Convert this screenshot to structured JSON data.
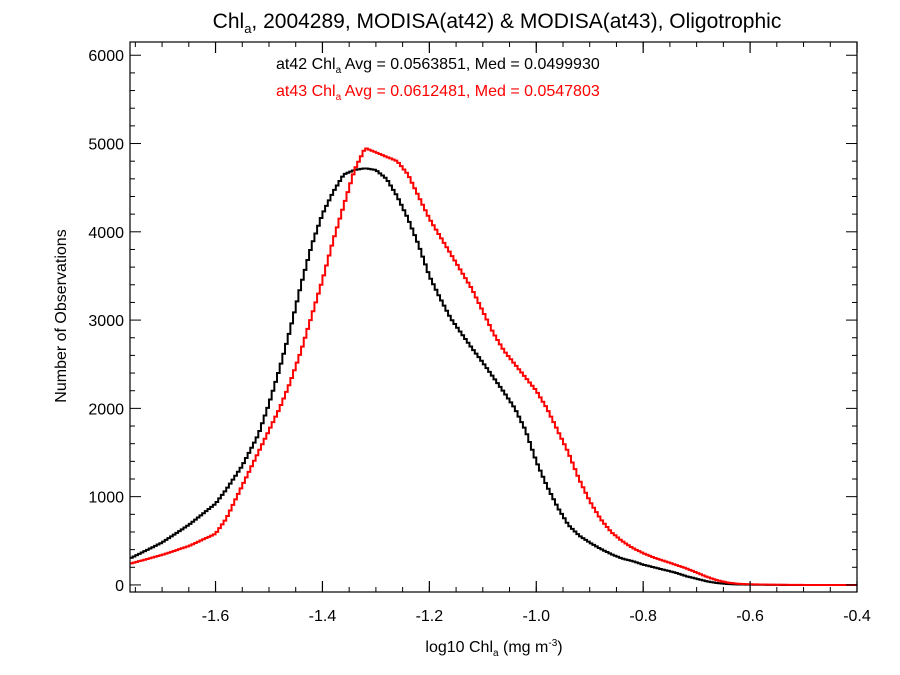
{
  "chart_data": {
    "type": "line",
    "title_parts": {
      "pre": "Chl",
      "sub": "a",
      "post": ", 2004289, MODISA(at42) & MODISA(at43), Oligotrophic"
    },
    "xlabel_parts": {
      "pre": "log10 Chl",
      "sub": "a",
      "mid": " (mg m",
      "sup": "-3",
      "post": ")"
    },
    "ylabel": "Number of Observations",
    "xlim": [
      -1.76,
      -0.4
    ],
    "ylim": [
      -80,
      6150
    ],
    "x_ticks": [
      -1.6,
      -1.4,
      -1.2,
      -1.0,
      -0.8,
      -0.6,
      -0.4
    ],
    "x_tick_labels": [
      "-1.6",
      "-1.4",
      "-1.2",
      "-1.0",
      "-0.8",
      "-0.6",
      "-0.4"
    ],
    "y_ticks": [
      0,
      1000,
      2000,
      3000,
      4000,
      5000,
      6000
    ],
    "y_tick_labels": [
      "0",
      "1000",
      "2000",
      "3000",
      "4000",
      "5000",
      "6000"
    ],
    "annotations": [
      {
        "pre": "at42 Chl",
        "sub": "a",
        "post": " Avg = 0.0563851, Med = 0.0499930",
        "color": "#000000"
      },
      {
        "pre": "at43 Chl",
        "sub": "a",
        "post": " Avg = 0.0612481, Med = 0.0547803",
        "color": "#ff0000"
      }
    ],
    "grid": false,
    "style": "step",
    "series": [
      {
        "color": "#000000",
        "x": [
          -1.76,
          -1.7,
          -1.65,
          -1.6,
          -1.58,
          -1.55,
          -1.52,
          -1.5,
          -1.48,
          -1.46,
          -1.44,
          -1.42,
          -1.4,
          -1.38,
          -1.36,
          -1.34,
          -1.32,
          -1.3,
          -1.28,
          -1.26,
          -1.24,
          -1.22,
          -1.2,
          -1.18,
          -1.16,
          -1.14,
          -1.12,
          -1.1,
          -1.08,
          -1.06,
          -1.04,
          -1.02,
          -1.0,
          -0.98,
          -0.96,
          -0.94,
          -0.92,
          -0.9,
          -0.88,
          -0.86,
          -0.84,
          -0.82,
          -0.8,
          -0.78,
          -0.76,
          -0.74,
          -0.72,
          -0.7,
          -0.68,
          -0.66,
          -0.64,
          -0.62,
          -0.6,
          -0.58,
          -0.56,
          -0.54,
          -0.52,
          -0.5,
          -0.48,
          -0.46,
          -0.44,
          -0.42,
          -0.4
        ],
        "y": [
          300,
          480,
          680,
          920,
          1080,
          1350,
          1700,
          2050,
          2450,
          2900,
          3400,
          3850,
          4200,
          4450,
          4650,
          4700,
          4720,
          4700,
          4600,
          4400,
          4150,
          3850,
          3500,
          3250,
          3020,
          2850,
          2680,
          2520,
          2350,
          2180,
          2000,
          1750,
          1400,
          1120,
          880,
          680,
          560,
          480,
          410,
          350,
          300,
          270,
          230,
          200,
          170,
          140,
          100,
          70,
          40,
          20,
          10,
          5,
          3,
          2,
          1,
          0,
          0,
          0,
          0,
          0,
          0,
          0,
          0
        ]
      },
      {
        "color": "#ff0000",
        "x": [
          -1.76,
          -1.7,
          -1.65,
          -1.6,
          -1.58,
          -1.56,
          -1.54,
          -1.52,
          -1.5,
          -1.48,
          -1.46,
          -1.44,
          -1.42,
          -1.4,
          -1.38,
          -1.36,
          -1.34,
          -1.32,
          -1.3,
          -1.28,
          -1.26,
          -1.24,
          -1.22,
          -1.2,
          -1.18,
          -1.16,
          -1.14,
          -1.12,
          -1.1,
          -1.08,
          -1.06,
          -1.04,
          -1.02,
          -1.0,
          -0.98,
          -0.96,
          -0.94,
          -0.92,
          -0.9,
          -0.88,
          -0.86,
          -0.84,
          -0.82,
          -0.8,
          -0.78,
          -0.76,
          -0.74,
          -0.72,
          -0.7,
          -0.68,
          -0.66,
          -0.64,
          -0.62,
          -0.6,
          -0.58,
          -0.56,
          -0.54,
          -0.52,
          -0.5,
          -0.48,
          -0.46,
          -0.44,
          -0.42,
          -0.4
        ],
        "y": [
          240,
          340,
          440,
          580,
          750,
          1000,
          1250,
          1500,
          1750,
          2000,
          2300,
          2650,
          3050,
          3450,
          3900,
          4300,
          4700,
          4950,
          4900,
          4850,
          4800,
          4650,
          4400,
          4150,
          3950,
          3750,
          3550,
          3350,
          3100,
          2850,
          2650,
          2500,
          2350,
          2200,
          2000,
          1750,
          1500,
          1200,
          950,
          750,
          600,
          500,
          420,
          360,
          310,
          270,
          230,
          190,
          140,
          90,
          50,
          25,
          12,
          8,
          5,
          3,
          2,
          1,
          0,
          0,
          0,
          0,
          0,
          0
        ]
      }
    ]
  }
}
